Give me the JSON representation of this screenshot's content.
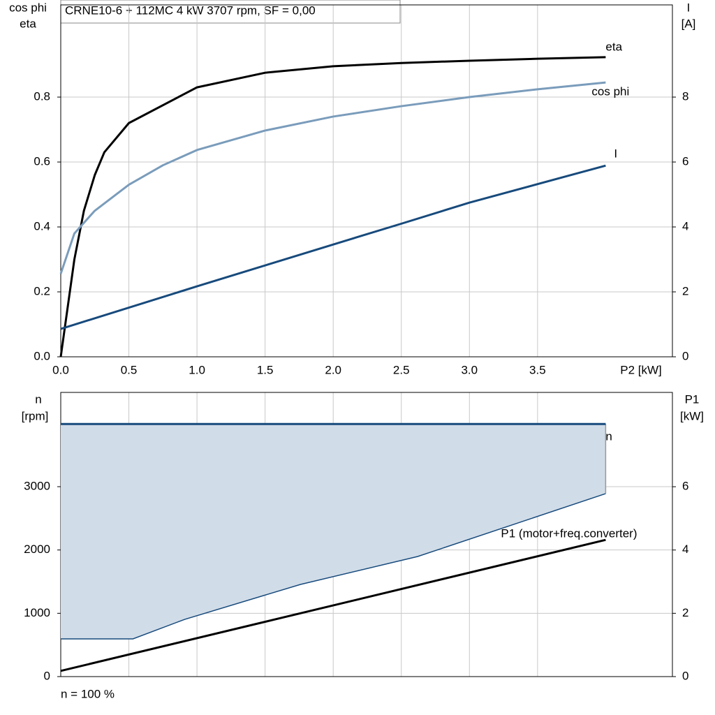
{
  "chart_data": [
    {
      "type": "line",
      "title": "CRNE10-6 + 112MC   4 kW   3707 rpm, SF = 0,00",
      "ylabel": [
        "cos phi",
        "eta"
      ],
      "y2label": [
        "I",
        "[A]"
      ],
      "xlabel": "P2 [kW]",
      "xlim": [
        0,
        4.49
      ],
      "xticks": [
        {
          "value": 0,
          "label": "0.0"
        },
        0.5,
        {
          "value": 1,
          "label": "1.0"
        },
        1.5,
        {
          "value": 2,
          "label": "2.0"
        },
        2.5,
        {
          "value": 3,
          "label": "3.0"
        },
        3.5
      ],
      "ylim": [
        0,
        1.084
      ],
      "yticks": [
        {
          "value": 0,
          "label": "0.0"
        },
        0.2,
        0.4,
        0.6,
        0.8
      ],
      "y2lim": [
        0,
        10.84
      ],
      "y2ticks": [
        0,
        2,
        4,
        6,
        8
      ],
      "grid": true,
      "series": [
        {
          "name": "eta",
          "color": "#000000",
          "x": [
            0,
            0.1,
            0.17,
            0.25,
            0.32,
            0.5,
            1.0,
            1.5,
            2.0,
            2.5,
            3.0,
            3.5,
            4.0
          ],
          "values": [
            0,
            0.3,
            0.45,
            0.56,
            0.63,
            0.72,
            0.83,
            0.875,
            0.895,
            0.905,
            0.912,
            0.918,
            0.923
          ]
        },
        {
          "name": "cos phi",
          "color": "#7a9cbb",
          "x": [
            0,
            0.1,
            0.25,
            0.5,
            0.75,
            1.0,
            1.5,
            2.0,
            2.5,
            3.0,
            3.5,
            4.0
          ],
          "values": [
            0.256,
            0.38,
            0.45,
            0.53,
            0.59,
            0.637,
            0.697,
            0.74,
            0.772,
            0.8,
            0.824,
            0.845
          ]
        },
        {
          "name": "I",
          "color": "#174a7c",
          "axis": "y2",
          "x": [
            0,
            1,
            2,
            2.5,
            3,
            4
          ],
          "values": [
            0.86,
            2.17,
            3.46,
            4.1,
            4.75,
            5.89
          ]
        }
      ]
    },
    {
      "type": "line",
      "ylabel": [
        "n",
        "[rpm]"
      ],
      "y2label": [
        "P1",
        "[kW]"
      ],
      "footnote": "n = 100 %",
      "xlim": [
        0,
        4.49
      ],
      "xticks": [
        0.5,
        1,
        1.5,
        2,
        2.5,
        3,
        3.5
      ],
      "ylim": [
        0,
        4489
      ],
      "yticks": [
        0,
        1000,
        2000,
        3000
      ],
      "y2lim": [
        0,
        8.98
      ],
      "y2ticks": [
        0,
        2,
        4,
        6
      ],
      "grid": true,
      "series": [
        {
          "name": "n",
          "color": "#174a7c",
          "x": [
            0,
            4
          ],
          "values": [
            3990,
            3990
          ],
          "range": {
            "fill": "#d0dce8",
            "x": [
              0,
              0.53,
              0.91,
              1.76,
              2.62,
              4.0
            ],
            "values": [
              596,
              596,
              904,
              1456,
              1897,
              2890
            ]
          }
        },
        {
          "name": "P1 (motor+freq.converter)",
          "color": "#000000",
          "axis": "y2",
          "x": [
            0,
            4
          ],
          "values": [
            0.18,
            4.32
          ]
        }
      ]
    }
  ]
}
